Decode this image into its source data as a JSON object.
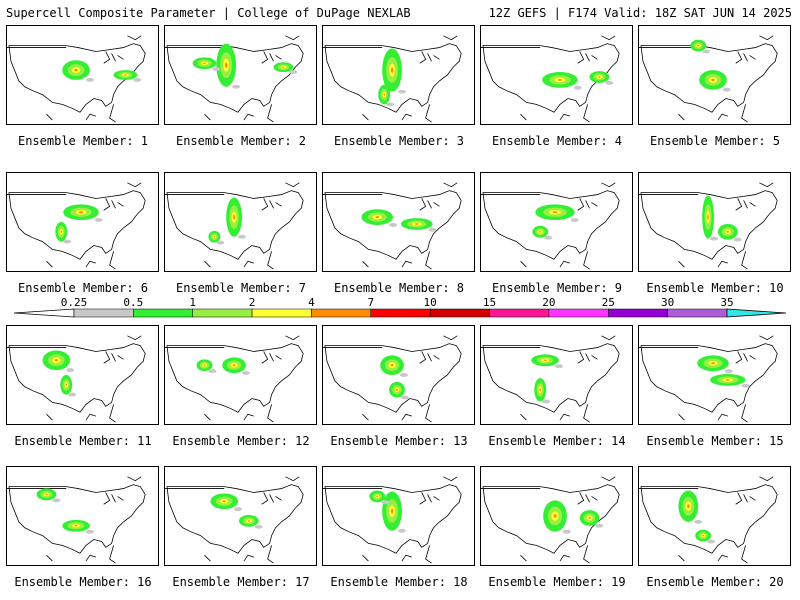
{
  "header": {
    "left": "Supercell Composite Parameter | College of DuPage NEXLAB",
    "right": "12Z GEFS | F174 Valid: 18Z SAT JUN 14 2025"
  },
  "legend": {
    "ticks": [
      "0.25",
      "0.5",
      "1",
      "2",
      "4",
      "7",
      "10",
      "15",
      "20",
      "25",
      "30",
      "35"
    ],
    "colors": [
      "#c8c8c8",
      "#33ee33",
      "#99ee44",
      "#ffff33",
      "#ff8c00",
      "#ff0000",
      "#d40000",
      "#ff1493",
      "#ff33ff",
      "#9400d3",
      "#b05cd8",
      "#33e5e5"
    ]
  },
  "panels": [
    {
      "label": "Ensemble Member: 1"
    },
    {
      "label": "Ensemble Member: 2"
    },
    {
      "label": "Ensemble Member: 3"
    },
    {
      "label": "Ensemble Member: 4"
    },
    {
      "label": "Ensemble Member: 5"
    },
    {
      "label": "Ensemble Member: 6"
    },
    {
      "label": "Ensemble Member: 7"
    },
    {
      "label": "Ensemble Member: 8"
    },
    {
      "label": "Ensemble Member: 9"
    },
    {
      "label": "Ensemble Member: 10"
    },
    {
      "label": "Ensemble Member: 11"
    },
    {
      "label": "Ensemble Member: 12"
    },
    {
      "label": "Ensemble Member: 13"
    },
    {
      "label": "Ensemble Member: 14"
    },
    {
      "label": "Ensemble Member: 15"
    },
    {
      "label": "Ensemble Member: 16"
    },
    {
      "label": "Ensemble Member: 17"
    },
    {
      "label": "Ensemble Member: 18"
    },
    {
      "label": "Ensemble Member: 19"
    },
    {
      "label": "Ensemble Member: 20"
    }
  ]
}
